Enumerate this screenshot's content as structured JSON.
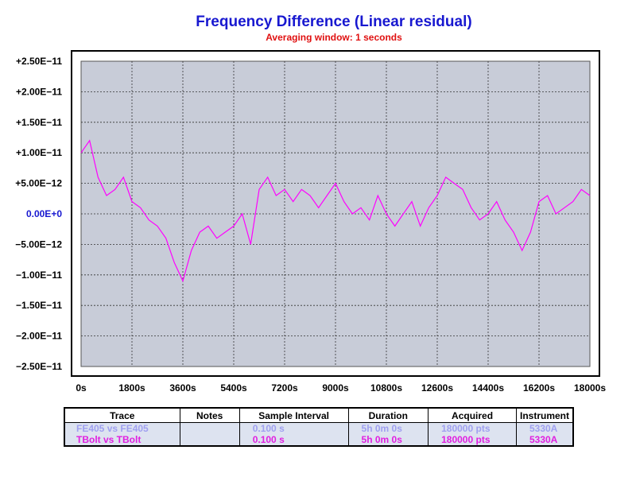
{
  "chart_data": {
    "type": "line",
    "title": "Frequency Difference (Linear residual)",
    "subtitle": "Averaging window: 1 seconds",
    "xlabel": "",
    "ylabel": "",
    "xlim": [
      0,
      18000
    ],
    "ylim": [
      -2.5e-11,
      2.5e-11
    ],
    "x_ticks": [
      "0s",
      "1800s",
      "3600s",
      "5400s",
      "7200s",
      "9000s",
      "10800s",
      "12600s",
      "14400s",
      "16200s",
      "18000s"
    ],
    "y_ticks": [
      "+2.50E−11",
      "+2.00E−11",
      "+1.50E−11",
      "+1.00E−11",
      "+5.00E−12",
      "0.00E+0",
      "−5.00E−12",
      "−1.00E−11",
      "−1.50E−11",
      "−2.00E−11",
      "−2.50E−11"
    ],
    "grid": true,
    "colors": {
      "plot_bg": "#c8ccd8",
      "series": "#ff00ff",
      "frame": "#000000"
    },
    "series": [
      {
        "name": "TBolt vs TBolt",
        "color": "#ff00ff",
        "x": [
          0,
          300,
          600,
          900,
          1200,
          1500,
          1800,
          2100,
          2400,
          2700,
          3000,
          3300,
          3600,
          3900,
          4200,
          4500,
          4800,
          5100,
          5400,
          5700,
          6000,
          6300,
          6600,
          6900,
          7200,
          7500,
          7800,
          8100,
          8400,
          8700,
          9000,
          9300,
          9600,
          9900,
          10200,
          10500,
          10800,
          11100,
          11400,
          11700,
          12000,
          12300,
          12600,
          12900,
          13200,
          13500,
          13800,
          14100,
          14400,
          14700,
          15000,
          15300,
          15600,
          15900,
          16200,
          16500,
          16800,
          17100,
          17400,
          17700,
          18000
        ],
        "y": [
          1e-11,
          1.2e-11,
          6e-12,
          3e-12,
          4e-12,
          6e-12,
          2e-12,
          1e-12,
          -1e-12,
          -2e-12,
          -4e-12,
          -8e-12,
          -1.1e-11,
          -6e-12,
          -3e-12,
          -2e-12,
          -4e-12,
          -3e-12,
          -2e-12,
          0.0,
          -5e-12,
          4e-12,
          6e-12,
          3e-12,
          4e-12,
          2e-12,
          4e-12,
          3e-12,
          1e-12,
          3e-12,
          5e-12,
          2e-12,
          0.0,
          1e-12,
          -1e-12,
          3e-12,
          0.0,
          -2e-12,
          0.0,
          2e-12,
          -2e-12,
          1e-12,
          3e-12,
          6e-12,
          5e-12,
          4e-12,
          1e-12,
          -1e-12,
          0.0,
          2e-12,
          -1e-12,
          -3e-12,
          -6e-12,
          -3e-12,
          2e-12,
          3e-12,
          0.0,
          1e-12,
          2e-12,
          4e-12,
          3e-12
        ]
      }
    ]
  },
  "legend_table": {
    "headers": [
      "Trace",
      "Notes",
      "Sample Interval",
      "Duration",
      "Acquired",
      "Instrument"
    ],
    "rows": [
      {
        "color": "#a0a0f0",
        "trace": "FE405 vs FE405",
        "notes": "",
        "interval": "0.100 s",
        "duration": "5h 0m 0s",
        "acquired": "180000 pts",
        "instrument": "5330A"
      },
      {
        "color": "#e020e0",
        "trace": "TBolt vs TBolt",
        "notes": "",
        "interval": "0.100 s",
        "duration": "5h 0m 0s",
        "acquired": "180000 pts",
        "instrument": "5330A"
      }
    ]
  }
}
